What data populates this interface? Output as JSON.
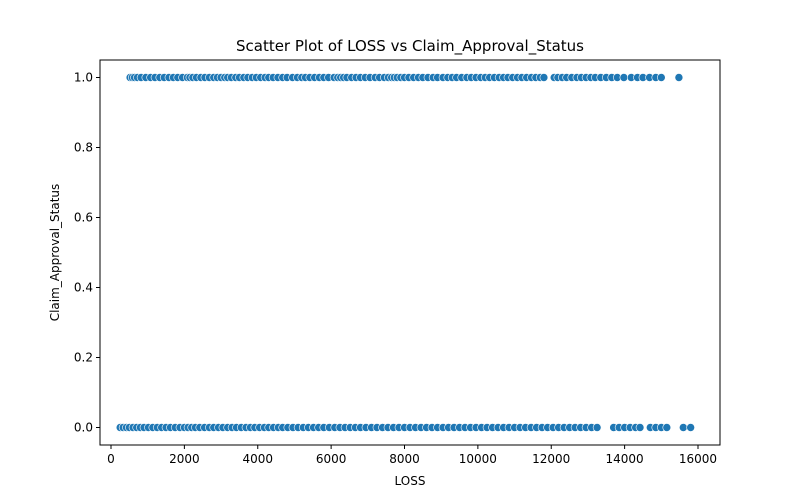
{
  "chart_data": {
    "type": "scatter",
    "title": "Scatter Plot of LOSS vs Claim_Approval_Status",
    "xlabel": "LOSS",
    "ylabel": "Claim_Approval_Status",
    "xlim": [
      -300,
      16600
    ],
    "ylim": [
      -0.05,
      1.05
    ],
    "xticks": [
      0,
      2000,
      4000,
      6000,
      8000,
      10000,
      12000,
      14000,
      16000
    ],
    "xtick_labels": [
      "0",
      "2000",
      "4000",
      "6000",
      "8000",
      "10000",
      "12000",
      "14000",
      "16000"
    ],
    "yticks": [
      0.0,
      0.2,
      0.4,
      0.6,
      0.8,
      1.0
    ],
    "ytick_labels": [
      "0.0",
      "0.2",
      "0.4",
      "0.6",
      "0.8",
      "1.0"
    ],
    "grid": false,
    "legend": "none",
    "marker_color": "#1f77b4",
    "marker_edge_color": "#ffffff",
    "series": [
      {
        "y": 1.0,
        "x": [
          520,
          580,
          640,
          720,
          820,
          950,
          1080,
          1200,
          1330,
          1450,
          1580,
          1700,
          1820,
          1950,
          2080,
          2150,
          2230,
          2330,
          2450,
          2560,
          2680,
          2800,
          2900,
          3000,
          3100,
          3180,
          3280,
          3400,
          3500,
          3620,
          3730,
          3850,
          3960,
          4080,
          4200,
          4300,
          4420,
          4550,
          4680,
          4800,
          4950,
          5080,
          5200,
          5300,
          5420,
          5550,
          5680,
          5800,
          5930,
          6080,
          6180,
          6260,
          6340,
          6430,
          6560,
          6680,
          6800,
          6930,
          7060,
          7200,
          7320,
          7450,
          7560,
          7650,
          7720,
          7800,
          7900,
          8000,
          8120,
          8250,
          8380,
          8500,
          8640,
          8780,
          8900,
          9050,
          9180,
          9300,
          9420,
          9560,
          9700,
          9820,
          9950,
          10080,
          10200,
          10320,
          10450,
          10580,
          10700,
          10820,
          10950,
          11080,
          11200,
          11330,
          11460,
          11580,
          11700,
          11800,
          12080,
          12180,
          12300,
          12420,
          12560,
          12700,
          12820,
          12950,
          13080,
          13200,
          13350,
          13500,
          13650,
          13800,
          13980,
          14180,
          14350,
          14500,
          14680,
          14850,
          15000,
          15480
        ]
      },
      {
        "y": 0.0,
        "x": [
          250,
          330,
          420,
          500,
          600,
          700,
          800,
          900,
          1020,
          1140,
          1260,
          1380,
          1500,
          1620,
          1750,
          1880,
          2000,
          2100,
          2200,
          2300,
          2420,
          2550,
          2680,
          2800,
          2930,
          3050,
          3180,
          3300,
          3420,
          3550,
          3680,
          3800,
          3920,
          4050,
          4180,
          4300,
          4430,
          4560,
          4680,
          4820,
          4960,
          5100,
          5240,
          5380,
          5520,
          5660,
          5800,
          5950,
          6100,
          6240,
          6380,
          6520,
          6660,
          6800,
          6950,
          7100,
          7250,
          7400,
          7550,
          7700,
          7850,
          8000,
          8150,
          8300,
          8450,
          8600,
          8750,
          8900,
          9050,
          9200,
          9350,
          9500,
          9650,
          9800,
          9950,
          10100,
          10250,
          10400,
          10550,
          10700,
          10850,
          11000,
          11150,
          11300,
          11450,
          11600,
          11750,
          11900,
          12050,
          12200,
          12350,
          12500,
          12650,
          12800,
          12950,
          13100,
          13250,
          13700,
          13850,
          14000,
          14150,
          14300,
          14420,
          14700,
          14850,
          15000,
          15150,
          15600,
          15800
        ]
      }
    ]
  }
}
